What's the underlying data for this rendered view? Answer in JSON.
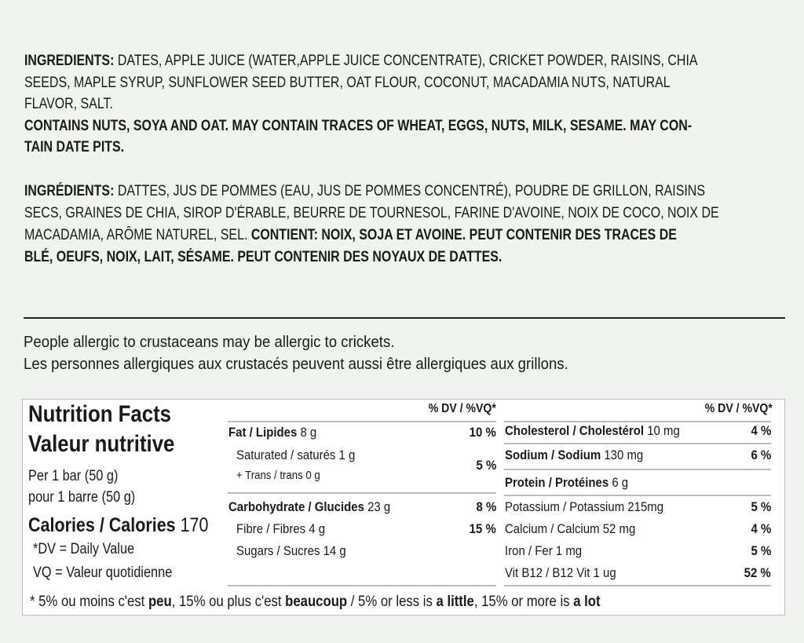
{
  "ingredients_en": {
    "label": "INGREDIENTS:",
    "line1": " DATES, APPLE JUICE (WATER,APPLE JUICE CONCENTRATE), CRICKET POWDER, RAISINS, CHIA",
    "line2": "SEEDS, MAPLE SYRUP, SUNFLOWER SEED BUTTER, OAT FLOUR, COCONUT, MACADAMIA NUTS, NATURAL",
    "line3": "FLAVOR, SALT.",
    "contains1": "CONTAINS NUTS, SOYA AND OAT. MAY CONTAIN TRACES OF WHEAT, EGGS, NUTS, MILK, SESAME. MAY CON-",
    "contains2": "TAIN DATE PITS."
  },
  "ingredients_fr": {
    "label": "INGRÉDIENTS:",
    "line1": " DATTES, JUS DE POMMES (EAU, JUS DE POMMES CONCENTRÉ), POUDRE DE GRILLON, RAISINS",
    "line2": "SECS, GRAINES DE CHIA, SIROP D'ÉRABLE, BEURRE DE TOURNESOL, FARINE D'AVOINE, NOIX DE COCO, NOIX DE",
    "line3": "MACADAMIA, ARÔME NATUREL, SEL.",
    "contains1": " CONTIENT: NOIX, SOJA ET AVOINE. PEUT CONTENIR DES TRACES DE",
    "contains2": "BLÉ, OEUFS, NOIX, LAIT, SÉSAME. PEUT CONTENIR DES NOYAUX DE DATTES."
  },
  "allergy": {
    "en": "People allergic to crustaceans may be allergic to crickets.",
    "fr": "Les personnes allergiques aux crustacés peuvent aussi être allergiques aux grillons."
  },
  "nutrition": {
    "title_en": "Nutrition Facts",
    "title_fr": "Valeur nutritive",
    "serving_en": "Per 1 bar (50 g)",
    "serving_fr": "pour 1 barre (50 g)",
    "calories_label": "Calories / Calories",
    "calories_value": " 170",
    "dv_note": "*DV = Daily Value",
    "vq_note": "VQ = Valeur quotidienne",
    "dv_header": "% DV / %VQ*",
    "left": {
      "fat": {
        "label": "Fat / Lipides",
        "amount": " 8 g",
        "dv": "10 %"
      },
      "saturated": {
        "label": "Saturated / saturés 1 g"
      },
      "trans": {
        "label": "+ Trans / trans 0 g",
        "dv": "5 %"
      },
      "carb": {
        "label": "Carbohydrate / Glucides",
        "amount": " 23 g",
        "dv": "8 %"
      },
      "fibre": {
        "label": "Fibre / Fibres 4 g",
        "dv": "15 %"
      },
      "sugars": {
        "label": "Sugars / Sucres 14 g"
      }
    },
    "right": {
      "cholesterol": {
        "label": "Cholesterol / Cholestérol",
        "amount": " 10 mg",
        "dv": "4 %"
      },
      "sodium": {
        "label": "Sodium / Sodium",
        "amount": " 130 mg",
        "dv": "6 %"
      },
      "protein": {
        "label": "Protein / Protéines",
        "amount": " 6 g"
      },
      "potassium": {
        "label": "Potassium / Potassium 215mg",
        "dv": "5 %"
      },
      "calcium": {
        "label": "Calcium / Calcium 52 mg",
        "dv": "4 %"
      },
      "iron": {
        "label": "Iron / Fer 1 mg",
        "dv": "5 %"
      },
      "b12": {
        "label": "Vit B12 / B12 Vit 1 ug",
        "dv": "52 %"
      }
    },
    "footnote": {
      "p1": "* 5% ou moins c'est ",
      "b1": "peu",
      "p2": ", 15% ou plus c'est ",
      "b2": "beaucoup",
      "p3": " / 5% or less is ",
      "b3": "a little",
      "p4": ", 15% or more is ",
      "b4": "a lot"
    }
  }
}
